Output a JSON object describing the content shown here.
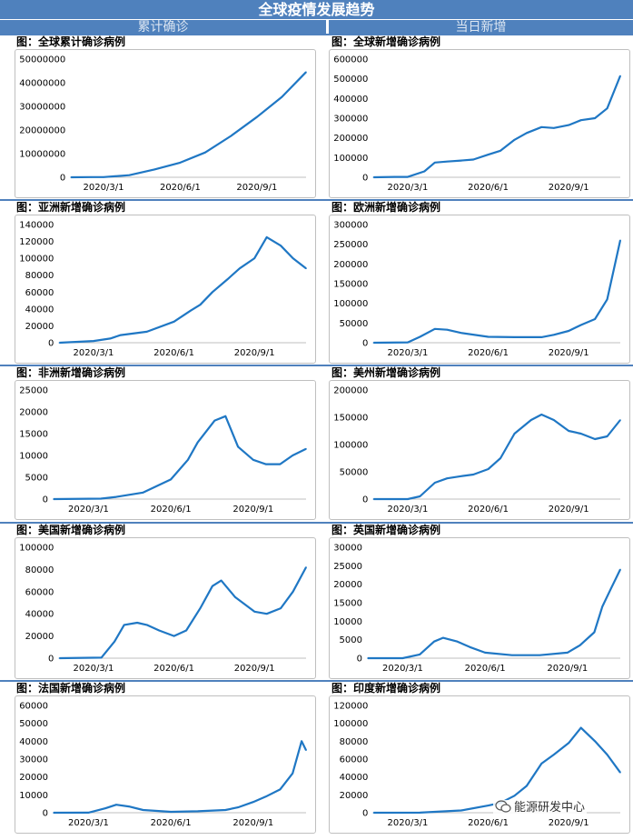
{
  "header": {
    "title": "全球疫情发展趋势",
    "left_section": "累计确诊",
    "right_section": "当日新增"
  },
  "watermark": {
    "text": "能源研发中心",
    "icon": "wechat-icon"
  },
  "colors": {
    "series": "#1f77c4",
    "header": "#4f81bd"
  },
  "chart_data": [
    {
      "id": "global-cumulative",
      "type": "line",
      "title": "图：全球累计确诊病例",
      "x_ticks": [
        "2020/3/1",
        "2020/6/1",
        "2020/9/1"
      ],
      "y_ticks": [
        "0",
        "10000000",
        "20000000",
        "30000000",
        "40000000",
        "50000000"
      ],
      "ylim": [
        0,
        50000000
      ],
      "xlim": [
        "2020-01-22",
        "2020-10-30"
      ],
      "series": [
        {
          "values": [
            [
              "2020-01-22",
              0
            ],
            [
              "2020-02-15",
              70000
            ],
            [
              "2020-03-01",
              90000
            ],
            [
              "2020-04-01",
              900000
            ],
            [
              "2020-05-01",
              3300000
            ],
            [
              "2020-06-01",
              6200000
            ],
            [
              "2020-07-01",
              10500000
            ],
            [
              "2020-08-01",
              17500000
            ],
            [
              "2020-09-01",
              25500000
            ],
            [
              "2020-10-01",
              34000000
            ],
            [
              "2020-10-30",
              44500000
            ]
          ]
        }
      ]
    },
    {
      "id": "global-daily",
      "type": "line",
      "title": "图：全球新增确诊病例",
      "x_ticks": [
        "2020/3/1",
        "2020/6/1",
        "2020/9/1"
      ],
      "y_ticks": [
        "0",
        "100000",
        "200000",
        "300000",
        "400000",
        "500000",
        "600000"
      ],
      "ylim": [
        0,
        600000
      ],
      "xlim": [
        "2020-01-22",
        "2020-10-30"
      ],
      "series": [
        {
          "values": [
            [
              "2020-01-22",
              0
            ],
            [
              "2020-02-15",
              2000
            ],
            [
              "2020-03-01",
              2000
            ],
            [
              "2020-03-20",
              30000
            ],
            [
              "2020-04-01",
              75000
            ],
            [
              "2020-04-15",
              80000
            ],
            [
              "2020-05-01",
              85000
            ],
            [
              "2020-05-15",
              90000
            ],
            [
              "2020-06-01",
              115000
            ],
            [
              "2020-06-15",
              135000
            ],
            [
              "2020-07-01",
              190000
            ],
            [
              "2020-07-15",
              225000
            ],
            [
              "2020-08-01",
              255000
            ],
            [
              "2020-08-15",
              250000
            ],
            [
              "2020-09-01",
              265000
            ],
            [
              "2020-09-15",
              290000
            ],
            [
              "2020-10-01",
              300000
            ],
            [
              "2020-10-15",
              350000
            ],
            [
              "2020-10-30",
              515000
            ]
          ]
        }
      ]
    },
    {
      "id": "asia-daily",
      "type": "line",
      "title": "图：亚洲新增确诊病例",
      "x_ticks": [
        "2020/3/1",
        "2020/6/1",
        "2020/9/1"
      ],
      "y_ticks": [
        "0",
        "20000",
        "40000",
        "60000",
        "80000",
        "100000",
        "120000",
        "140000"
      ],
      "ylim": [
        0,
        140000
      ],
      "xlim": [
        "2020-01-22",
        "2020-10-30"
      ],
      "series": [
        {
          "values": [
            [
              "2020-01-22",
              0
            ],
            [
              "2020-03-01",
              2000
            ],
            [
              "2020-03-20",
              5000
            ],
            [
              "2020-04-01",
              9000
            ],
            [
              "2020-05-01",
              13000
            ],
            [
              "2020-06-01",
              25000
            ],
            [
              "2020-06-20",
              38000
            ],
            [
              "2020-07-01",
              45000
            ],
            [
              "2020-07-15",
              60000
            ],
            [
              "2020-08-01",
              75000
            ],
            [
              "2020-08-15",
              88000
            ],
            [
              "2020-09-01",
              100000
            ],
            [
              "2020-09-15",
              125000
            ],
            [
              "2020-10-01",
              115000
            ],
            [
              "2020-10-15",
              100000
            ],
            [
              "2020-10-30",
              88000
            ]
          ]
        }
      ]
    },
    {
      "id": "europe-daily",
      "type": "line",
      "title": "图：欧洲新增确诊病例",
      "x_ticks": [
        "2020/3/1",
        "2020/6/1",
        "2020/9/1"
      ],
      "y_ticks": [
        "0",
        "50000",
        "100000",
        "150000",
        "200000",
        "250000",
        "300000"
      ],
      "ylim": [
        0,
        300000
      ],
      "xlim": [
        "2020-01-22",
        "2020-10-30"
      ],
      "series": [
        {
          "values": [
            [
              "2020-01-22",
              0
            ],
            [
              "2020-03-01",
              1000
            ],
            [
              "2020-03-15",
              15000
            ],
            [
              "2020-04-01",
              35000
            ],
            [
              "2020-04-15",
              33000
            ],
            [
              "2020-05-01",
              25000
            ],
            [
              "2020-06-01",
              15000
            ],
            [
              "2020-07-01",
              14000
            ],
            [
              "2020-08-01",
              14000
            ],
            [
              "2020-08-15",
              20000
            ],
            [
              "2020-09-01",
              30000
            ],
            [
              "2020-09-15",
              45000
            ],
            [
              "2020-10-01",
              60000
            ],
            [
              "2020-10-15",
              110000
            ],
            [
              "2020-10-30",
              260000
            ]
          ]
        }
      ]
    },
    {
      "id": "africa-daily",
      "type": "line",
      "title": "图：非洲新增确诊病例",
      "x_ticks": [
        "2020/3/1",
        "2020/6/1",
        "2020/9/1"
      ],
      "y_ticks": [
        "0",
        "5000",
        "10000",
        "15000",
        "20000",
        "25000"
      ],
      "ylim": [
        0,
        25000
      ],
      "xlim": [
        "2020-01-22",
        "2020-10-30"
      ],
      "series": [
        {
          "values": [
            [
              "2020-01-22",
              0
            ],
            [
              "2020-03-15",
              100
            ],
            [
              "2020-04-01",
              500
            ],
            [
              "2020-05-01",
              1500
            ],
            [
              "2020-06-01",
              4500
            ],
            [
              "2020-06-20",
              9000
            ],
            [
              "2020-07-01",
              13000
            ],
            [
              "2020-07-20",
              18000
            ],
            [
              "2020-08-01",
              19000
            ],
            [
              "2020-08-15",
              12000
            ],
            [
              "2020-09-01",
              9000
            ],
            [
              "2020-09-15",
              8000
            ],
            [
              "2020-10-01",
              8000
            ],
            [
              "2020-10-15",
              10000
            ],
            [
              "2020-10-30",
              11500
            ]
          ]
        }
      ]
    },
    {
      "id": "americas-daily",
      "type": "line",
      "title": "图：美州新增确诊病例",
      "x_ticks": [
        "2020/3/1",
        "2020/6/1",
        "2020/9/1"
      ],
      "y_ticks": [
        "0",
        "50000",
        "100000",
        "150000",
        "200000"
      ],
      "ylim": [
        0,
        200000
      ],
      "xlim": [
        "2020-01-22",
        "2020-10-30"
      ],
      "series": [
        {
          "values": [
            [
              "2020-01-22",
              0
            ],
            [
              "2020-03-01",
              0
            ],
            [
              "2020-03-15",
              5000
            ],
            [
              "2020-04-01",
              30000
            ],
            [
              "2020-04-15",
              38000
            ],
            [
              "2020-05-01",
              42000
            ],
            [
              "2020-05-15",
              45000
            ],
            [
              "2020-06-01",
              55000
            ],
            [
              "2020-06-15",
              75000
            ],
            [
              "2020-07-01",
              120000
            ],
            [
              "2020-07-20",
              145000
            ],
            [
              "2020-08-01",
              155000
            ],
            [
              "2020-08-15",
              145000
            ],
            [
              "2020-09-01",
              125000
            ],
            [
              "2020-09-15",
              120000
            ],
            [
              "2020-10-01",
              110000
            ],
            [
              "2020-10-15",
              115000
            ],
            [
              "2020-10-30",
              145000
            ]
          ]
        }
      ]
    },
    {
      "id": "usa-daily",
      "type": "line",
      "title": "图：美国新增确诊病例",
      "x_ticks": [
        "2020/3/1",
        "2020/6/1",
        "2020/9/1"
      ],
      "y_ticks": [
        "0",
        "20000",
        "40000",
        "60000",
        "80000",
        "100000"
      ],
      "ylim": [
        0,
        100000
      ],
      "xlim": [
        "2020-01-22",
        "2020-10-30"
      ],
      "series": [
        {
          "values": [
            [
              "2020-01-22",
              0
            ],
            [
              "2020-03-10",
              500
            ],
            [
              "2020-03-25",
              15000
            ],
            [
              "2020-04-05",
              30000
            ],
            [
              "2020-04-20",
              32000
            ],
            [
              "2020-05-01",
              30000
            ],
            [
              "2020-05-15",
              25000
            ],
            [
              "2020-06-01",
              20000
            ],
            [
              "2020-06-15",
              25000
            ],
            [
              "2020-07-01",
              45000
            ],
            [
              "2020-07-15",
              65000
            ],
            [
              "2020-07-25",
              70000
            ],
            [
              "2020-08-10",
              55000
            ],
            [
              "2020-09-01",
              42000
            ],
            [
              "2020-09-15",
              40000
            ],
            [
              "2020-10-01",
              45000
            ],
            [
              "2020-10-15",
              60000
            ],
            [
              "2020-10-30",
              82000
            ]
          ]
        }
      ]
    },
    {
      "id": "uk-daily",
      "type": "line",
      "title": "图：英国新增确诊病例",
      "x_ticks": [
        "2020/3/1",
        "2020/6/1",
        "2020/9/1"
      ],
      "y_ticks": [
        "0",
        "5000",
        "10000",
        "15000",
        "20000",
        "25000",
        "30000"
      ],
      "ylim": [
        0,
        30000
      ],
      "xlim": [
        "2020-01-22",
        "2020-10-30"
      ],
      "series": [
        {
          "values": [
            [
              "2020-01-22",
              0
            ],
            [
              "2020-03-01",
              0
            ],
            [
              "2020-03-20",
              1000
            ],
            [
              "2020-04-05",
              4500
            ],
            [
              "2020-04-15",
              5500
            ],
            [
              "2020-05-01",
              4500
            ],
            [
              "2020-05-15",
              3000
            ],
            [
              "2020-06-01",
              1500
            ],
            [
              "2020-07-01",
              800
            ],
            [
              "2020-08-01",
              800
            ],
            [
              "2020-09-01",
              1500
            ],
            [
              "2020-09-15",
              3500
            ],
            [
              "2020-10-01",
              7000
            ],
            [
              "2020-10-10",
              14000
            ],
            [
              "2020-10-20",
              19000
            ],
            [
              "2020-10-30",
              24000
            ]
          ]
        }
      ]
    },
    {
      "id": "france-daily",
      "type": "line",
      "title": "图：法国新增确诊病例",
      "x_ticks": [
        "2020/3/1",
        "2020/6/1",
        "2020/9/1"
      ],
      "y_ticks": [
        "0",
        "10000",
        "20000",
        "30000",
        "40000",
        "50000",
        "60000"
      ],
      "ylim": [
        0,
        60000
      ],
      "xlim": [
        "2020-01-22",
        "2020-10-30"
      ],
      "series": [
        {
          "values": [
            [
              "2020-01-22",
              0
            ],
            [
              "2020-03-01",
              50
            ],
            [
              "2020-03-20",
              2500
            ],
            [
              "2020-04-01",
              4500
            ],
            [
              "2020-04-15",
              3500
            ],
            [
              "2020-05-01",
              1500
            ],
            [
              "2020-06-01",
              500
            ],
            [
              "2020-07-01",
              800
            ],
            [
              "2020-08-01",
              1500
            ],
            [
              "2020-08-15",
              3000
            ],
            [
              "2020-09-01",
              6000
            ],
            [
              "2020-09-15",
              9000
            ],
            [
              "2020-10-01",
              13000
            ],
            [
              "2020-10-15",
              22000
            ],
            [
              "2020-10-25",
              40000
            ],
            [
              "2020-10-30",
              35000
            ]
          ]
        }
      ]
    },
    {
      "id": "india-daily",
      "type": "line",
      "title": "图：印度新增确诊病例",
      "x_ticks": [
        "2020/3/1",
        "2020/6/1",
        "2020/9/1"
      ],
      "y_ticks": [
        "0",
        "20000",
        "40000",
        "60000",
        "80000",
        "100000",
        "120000"
      ],
      "ylim": [
        0,
        120000
      ],
      "xlim": [
        "2020-01-22",
        "2020-10-30"
      ],
      "series": [
        {
          "values": [
            [
              "2020-01-22",
              0
            ],
            [
              "2020-03-15",
              100
            ],
            [
              "2020-04-01",
              1000
            ],
            [
              "2020-05-01",
              2500
            ],
            [
              "2020-06-01",
              8000
            ],
            [
              "2020-06-15",
              11000
            ],
            [
              "2020-07-01",
              19000
            ],
            [
              "2020-07-15",
              30000
            ],
            [
              "2020-08-01",
              55000
            ],
            [
              "2020-08-15",
              65000
            ],
            [
              "2020-09-01",
              78000
            ],
            [
              "2020-09-15",
              95000
            ],
            [
              "2020-10-01",
              80000
            ],
            [
              "2020-10-15",
              65000
            ],
            [
              "2020-10-30",
              45000
            ]
          ]
        }
      ]
    }
  ]
}
